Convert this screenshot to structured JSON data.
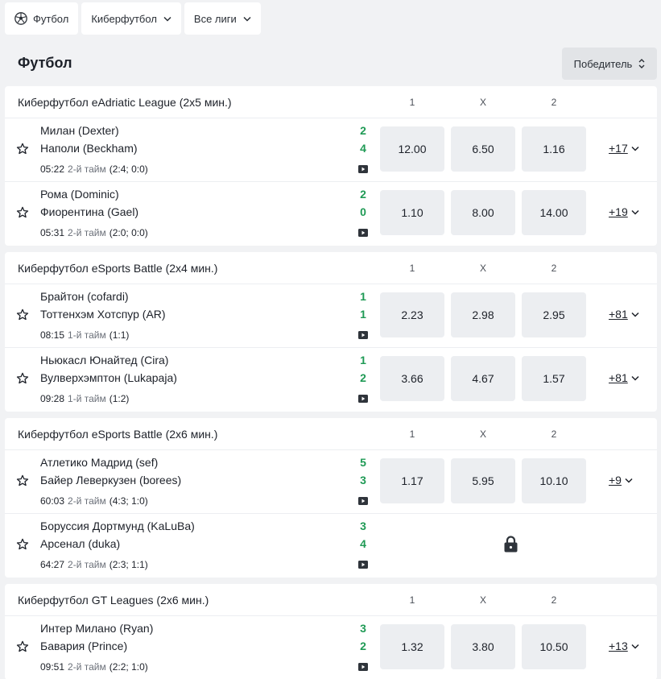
{
  "filters": {
    "football_label": "Футбол",
    "cyber_label": "Киберфутбол",
    "leagues_label": "Все лиги"
  },
  "page_title": "Футбол",
  "sort_label": "Победитель",
  "columns": [
    "1",
    "X",
    "2"
  ],
  "leagues": [
    {
      "title": "Киберфутбол eAdriatic League (2x5 мин.)",
      "matches": [
        {
          "team1": "Милан (Dexter)",
          "team2": "Наполи (Beckham)",
          "score1": "2",
          "score2": "4",
          "time": "05:22",
          "half": "2-й тайм",
          "details": "(2:4; 0:0)",
          "odds": [
            "12.00",
            "6.50",
            "1.16"
          ],
          "more": "+17",
          "locked": false
        },
        {
          "team1": "Рома (Dominic)",
          "team2": "Фиорентина (Gael)",
          "score1": "2",
          "score2": "0",
          "time": "05:31",
          "half": "2-й тайм",
          "details": "(2:0; 0:0)",
          "odds": [
            "1.10",
            "8.00",
            "14.00"
          ],
          "more": "+19",
          "locked": false
        }
      ]
    },
    {
      "title": "Киберфутбол eSports Battle (2x4 мин.)",
      "matches": [
        {
          "team1": "Брайтон (cofardi)",
          "team2": "Тоттенхэм Хотспур (AR)",
          "score1": "1",
          "score2": "1",
          "time": "08:15",
          "half": "1-й тайм",
          "details": "(1:1)",
          "odds": [
            "2.23",
            "2.98",
            "2.95"
          ],
          "more": "+81",
          "locked": false
        },
        {
          "team1": "Ньюкасл Юнайтед (Cira)",
          "team2": "Вулверхэмптон (Lukapaja)",
          "score1": "1",
          "score2": "2",
          "time": "09:28",
          "half": "1-й тайм",
          "details": "(1:2)",
          "odds": [
            "3.66",
            "4.67",
            "1.57"
          ],
          "more": "+81",
          "locked": false
        }
      ]
    },
    {
      "title": "Киберфутбол eSports Battle (2x6 мин.)",
      "matches": [
        {
          "team1": "Атлетико Мадрид (sef)",
          "team2": "Байер Леверкузен (borees)",
          "score1": "5",
          "score2": "3",
          "time": "60:03",
          "half": "2-й тайм",
          "details": "(4:3; 1:0)",
          "odds": [
            "1.17",
            "5.95",
            "10.10"
          ],
          "more": "+9",
          "locked": false
        },
        {
          "team1": "Боруссия Дортмунд (KaLuBa)",
          "team2": "Арсенал (duka)",
          "score1": "3",
          "score2": "4",
          "time": "64:27",
          "half": "2-й тайм",
          "details": "(2:3; 1:1)",
          "odds": [],
          "more": "",
          "locked": true
        }
      ]
    },
    {
      "title": "Киберфутбол GT Leagues (2x6 мин.)",
      "matches": [
        {
          "team1": "Интер Милано (Ryan)",
          "team2": "Бавария (Prince)",
          "score1": "3",
          "score2": "2",
          "time": "09:51",
          "half": "2-й тайм",
          "details": "(2:2; 1:0)",
          "odds": [
            "1.32",
            "3.80",
            "10.50"
          ],
          "more": "+13",
          "locked": false
        }
      ]
    }
  ],
  "icons": {
    "sport": "soccer-ball-icon",
    "dropdown": "chevron-down-icon",
    "sort": "sort-updown-icon",
    "favorite": "star-icon",
    "stream": "play-icon",
    "locked": "lock-icon"
  },
  "colors": {
    "score": "#1f9a55",
    "background": "#f1f2f4",
    "odd_cell": "#eceef1"
  }
}
